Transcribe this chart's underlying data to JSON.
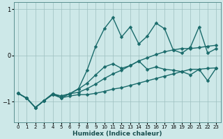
{
  "xlabel": "Humidex (Indice chaleur)",
  "bg_color": "#cde8e8",
  "grid_color": "#9dbfbf",
  "line_color": "#1a6b6b",
  "xlim": [
    -0.5,
    23.5
  ],
  "ylim": [
    -1.45,
    1.15
  ],
  "yticks": [
    -1,
    0,
    1
  ],
  "xticks": [
    0,
    1,
    2,
    3,
    4,
    5,
    6,
    7,
    8,
    9,
    10,
    11,
    12,
    13,
    14,
    15,
    16,
    17,
    18,
    19,
    20,
    21,
    22,
    23
  ],
  "line1_x": [
    0,
    1,
    2,
    3,
    4,
    5,
    6,
    7,
    8,
    9,
    10,
    11,
    12,
    13,
    14,
    15,
    16,
    17,
    18,
    19,
    20,
    21,
    22,
    23
  ],
  "line1_y": [
    -0.82,
    -0.93,
    -1.13,
    -0.98,
    -0.85,
    -0.92,
    -0.88,
    -0.85,
    -0.85,
    -0.82,
    -0.78,
    -0.73,
    -0.7,
    -0.65,
    -0.6,
    -0.55,
    -0.5,
    -0.45,
    -0.4,
    -0.35,
    -0.3,
    -0.3,
    -0.28,
    -0.27
  ],
  "line2_x": [
    0,
    1,
    2,
    3,
    4,
    5,
    6,
    7,
    8,
    9,
    10,
    11,
    12,
    13,
    14,
    15,
    16,
    17,
    18,
    19,
    20,
    21,
    22,
    23
  ],
  "line2_y": [
    -0.82,
    -0.93,
    -1.13,
    -0.98,
    -0.85,
    -0.88,
    -0.83,
    -0.8,
    -0.72,
    -0.62,
    -0.5,
    -0.4,
    -0.32,
    -0.22,
    -0.12,
    -0.05,
    0.02,
    0.08,
    0.12,
    0.15,
    0.15,
    0.17,
    0.2,
    0.22
  ],
  "line3_x": [
    0,
    1,
    2,
    3,
    4,
    5,
    6,
    7,
    8,
    9,
    10,
    11,
    12,
    13,
    14,
    15,
    16,
    17,
    18,
    19,
    20,
    21,
    22,
    23
  ],
  "line3_y": [
    -0.82,
    -0.93,
    -1.13,
    -0.98,
    -0.83,
    -0.92,
    -0.83,
    -0.73,
    -0.6,
    -0.42,
    -0.25,
    -0.18,
    -0.28,
    -0.22,
    -0.12,
    -0.3,
    -0.25,
    -0.3,
    -0.32,
    -0.35,
    -0.42,
    -0.3,
    -0.55,
    -0.27
  ],
  "line4_x": [
    0,
    1,
    2,
    3,
    4,
    5,
    6,
    7,
    8,
    9,
    10,
    11,
    12,
    13,
    14,
    15,
    16,
    17,
    18,
    19,
    20,
    21,
    22,
    23
  ],
  "line4_y": [
    -0.82,
    -0.93,
    -1.13,
    -0.98,
    -0.83,
    -0.88,
    -0.83,
    -0.72,
    -0.32,
    0.2,
    0.58,
    0.82,
    0.4,
    0.62,
    0.25,
    0.42,
    0.7,
    0.58,
    0.12,
    0.05,
    0.18,
    0.62,
    0.05,
    0.15
  ],
  "marker_size": 2.5,
  "line_width": 1.0
}
